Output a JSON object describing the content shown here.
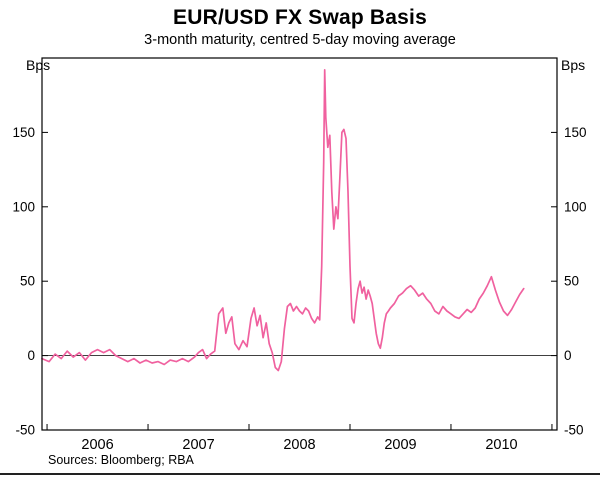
{
  "chart_data": {
    "type": "line",
    "title": "EUR/USD FX Swap Basis",
    "subtitle": "3-month maturity, centred 5-day moving average",
    "unit_left": "Bps",
    "unit_right": "Bps",
    "sources": "Sources: Bloomberg; RBA",
    "xlabel": "",
    "ylabel": "Bps",
    "xlim": [
      2005.45,
      2010.55
    ],
    "ylim": [
      -50,
      200
    ],
    "yticks": [
      -50,
      0,
      50,
      100,
      150
    ],
    "xticks_minor": [
      2005.5,
      2006.5,
      2007.5,
      2008.5,
      2009.5,
      2010.5
    ],
    "xtick_labels": [
      {
        "value": 2006,
        "label": "2006"
      },
      {
        "value": 2007,
        "label": "2007"
      },
      {
        "value": 2008,
        "label": "2008"
      },
      {
        "value": 2009,
        "label": "2009"
      },
      {
        "value": 2010,
        "label": "2010"
      }
    ],
    "grid": false,
    "zero_line": true,
    "legend_position": "none",
    "series": [
      {
        "name": "EUR/USD 3-month FX swap basis, centred 5-day moving average",
        "color": "#f0619f",
        "points": [
          [
            2005.45,
            -2
          ],
          [
            2005.52,
            -4
          ],
          [
            2005.58,
            1
          ],
          [
            2005.64,
            -2
          ],
          [
            2005.7,
            3
          ],
          [
            2005.76,
            -1
          ],
          [
            2005.82,
            2
          ],
          [
            2005.88,
            -3
          ],
          [
            2005.94,
            2
          ],
          [
            2006.0,
            4
          ],
          [
            2006.06,
            2
          ],
          [
            2006.12,
            4
          ],
          [
            2006.18,
            0
          ],
          [
            2006.24,
            -2
          ],
          [
            2006.3,
            -4
          ],
          [
            2006.36,
            -2
          ],
          [
            2006.42,
            -5
          ],
          [
            2006.48,
            -3
          ],
          [
            2006.54,
            -5
          ],
          [
            2006.6,
            -4
          ],
          [
            2006.66,
            -6
          ],
          [
            2006.72,
            -3
          ],
          [
            2006.78,
            -4
          ],
          [
            2006.84,
            -2
          ],
          [
            2006.9,
            -4
          ],
          [
            2006.96,
            -1
          ],
          [
            2007.0,
            2
          ],
          [
            2007.04,
            4
          ],
          [
            2007.08,
            -2
          ],
          [
            2007.12,
            1
          ],
          [
            2007.16,
            3
          ],
          [
            2007.2,
            28
          ],
          [
            2007.24,
            32
          ],
          [
            2007.27,
            15
          ],
          [
            2007.3,
            22
          ],
          [
            2007.33,
            26
          ],
          [
            2007.36,
            8
          ],
          [
            2007.4,
            4
          ],
          [
            2007.44,
            10
          ],
          [
            2007.48,
            6
          ],
          [
            2007.52,
            25
          ],
          [
            2007.55,
            32
          ],
          [
            2007.58,
            20
          ],
          [
            2007.61,
            27
          ],
          [
            2007.64,
            12
          ],
          [
            2007.67,
            22
          ],
          [
            2007.7,
            8
          ],
          [
            2007.73,
            2
          ],
          [
            2007.76,
            -8
          ],
          [
            2007.79,
            -10
          ],
          [
            2007.82,
            -4
          ],
          [
            2007.85,
            18
          ],
          [
            2007.88,
            33
          ],
          [
            2007.91,
            35
          ],
          [
            2007.94,
            30
          ],
          [
            2007.97,
            33
          ],
          [
            2008.0,
            30
          ],
          [
            2008.03,
            28
          ],
          [
            2008.06,
            32
          ],
          [
            2008.09,
            30
          ],
          [
            2008.12,
            25
          ],
          [
            2008.15,
            22
          ],
          [
            2008.18,
            26
          ],
          [
            2008.2,
            24
          ],
          [
            2008.22,
            60
          ],
          [
            2008.24,
            130
          ],
          [
            2008.25,
            192
          ],
          [
            2008.26,
            160
          ],
          [
            2008.28,
            140
          ],
          [
            2008.3,
            148
          ],
          [
            2008.32,
            110
          ],
          [
            2008.34,
            85
          ],
          [
            2008.36,
            100
          ],
          [
            2008.38,
            92
          ],
          [
            2008.4,
            120
          ],
          [
            2008.42,
            150
          ],
          [
            2008.44,
            152
          ],
          [
            2008.46,
            146
          ],
          [
            2008.48,
            110
          ],
          [
            2008.5,
            60
          ],
          [
            2008.52,
            25
          ],
          [
            2008.54,
            22
          ],
          [
            2008.56,
            35
          ],
          [
            2008.58,
            45
          ],
          [
            2008.6,
            50
          ],
          [
            2008.62,
            42
          ],
          [
            2008.64,
            46
          ],
          [
            2008.66,
            38
          ],
          [
            2008.68,
            44
          ],
          [
            2008.7,
            40
          ],
          [
            2008.72,
            35
          ],
          [
            2008.74,
            25
          ],
          [
            2008.76,
            15
          ],
          [
            2008.78,
            8
          ],
          [
            2008.8,
            5
          ],
          [
            2008.82,
            12
          ],
          [
            2008.84,
            22
          ],
          [
            2008.86,
            28
          ],
          [
            2008.88,
            30
          ],
          [
            2008.9,
            32
          ],
          [
            2008.94,
            35
          ],
          [
            2008.98,
            40
          ],
          [
            2009.02,
            42
          ],
          [
            2009.06,
            45
          ],
          [
            2009.1,
            47
          ],
          [
            2009.14,
            44
          ],
          [
            2009.18,
            40
          ],
          [
            2009.22,
            42
          ],
          [
            2009.26,
            38
          ],
          [
            2009.3,
            35
          ],
          [
            2009.34,
            30
          ],
          [
            2009.38,
            28
          ],
          [
            2009.42,
            33
          ],
          [
            2009.46,
            30
          ],
          [
            2009.5,
            28
          ],
          [
            2009.54,
            26
          ],
          [
            2009.58,
            25
          ],
          [
            2009.62,
            28
          ],
          [
            2009.66,
            31
          ],
          [
            2009.7,
            29
          ],
          [
            2009.74,
            32
          ],
          [
            2009.78,
            38
          ],
          [
            2009.82,
            42
          ],
          [
            2009.86,
            47
          ],
          [
            2009.9,
            53
          ],
          [
            2009.94,
            44
          ],
          [
            2009.98,
            36
          ],
          [
            2010.02,
            30
          ],
          [
            2010.06,
            27
          ],
          [
            2010.1,
            31
          ],
          [
            2010.14,
            36
          ],
          [
            2010.18,
            41
          ],
          [
            2010.22,
            45
          ]
        ]
      }
    ]
  }
}
